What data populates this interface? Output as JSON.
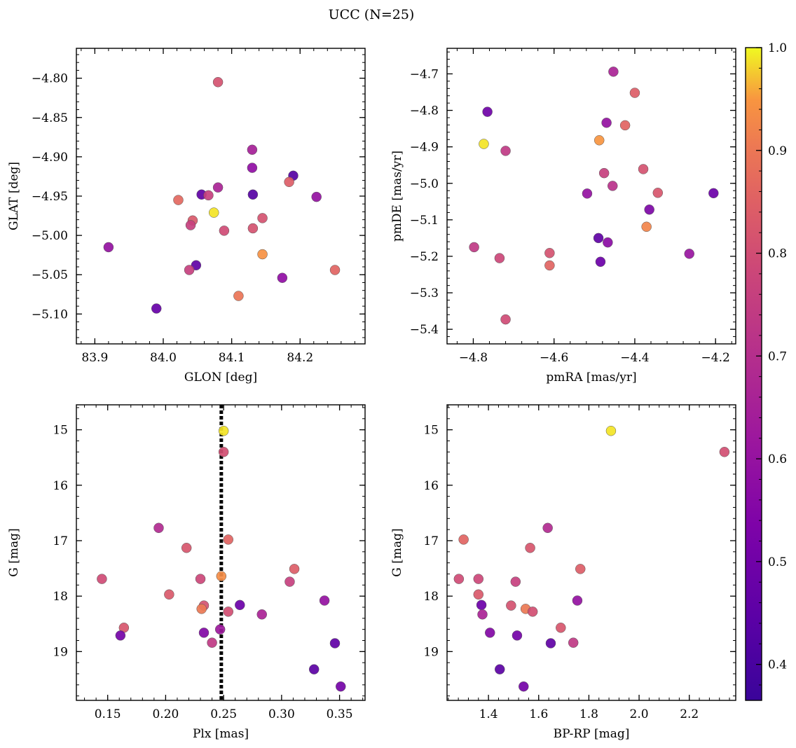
{
  "figure": {
    "suptitle": "UCC (N=25)"
  },
  "colorbar": {
    "colormap": "plasma",
    "vmin": 0.365,
    "vmax": 1.0,
    "ticks": [
      0.4,
      0.5,
      0.6,
      0.7,
      0.8,
      0.9,
      1.0
    ],
    "tick_labels": [
      "0.4",
      "0.5",
      "0.6",
      "0.7",
      "0.8",
      "0.9",
      "1.0"
    ]
  },
  "chart_data": [
    {
      "type": "scatter",
      "id": "glon-glat",
      "xlabel": "GLON [deg]",
      "ylabel": "GLAT [deg]",
      "xlim": [
        83.873,
        84.295
      ],
      "ylim": [
        -5.138,
        -4.762
      ],
      "y_inverted": false,
      "xticks": [
        83.9,
        84.0,
        84.1,
        84.2
      ],
      "xtick_labels": [
        "83.9",
        "84.0",
        "84.1",
        "84.2"
      ],
      "yticks": [
        -4.8,
        -4.85,
        -4.9,
        -4.95,
        -5.0,
        -5.05,
        -5.1
      ],
      "ytick_labels": [
        "−4.80",
        "−4.85",
        "−4.90",
        "−4.95",
        "−5.00",
        "−5.05",
        "−5.10"
      ],
      "x_minor_step": 0.02,
      "y_minor_step": 0.01,
      "points": [
        {
          "x": 84.08,
          "y": -4.805,
          "c": 0.71
        },
        {
          "x": 84.13,
          "y": -4.891,
          "c": 0.57
        },
        {
          "x": 84.13,
          "y": -4.914,
          "c": 0.52
        },
        {
          "x": 84.19,
          "y": -4.924,
          "c": 0.4
        },
        {
          "x": 84.184,
          "y": -4.932,
          "c": 0.74
        },
        {
          "x": 84.08,
          "y": -4.939,
          "c": 0.58
        },
        {
          "x": 84.056,
          "y": -4.948,
          "c": 0.42
        },
        {
          "x": 84.066,
          "y": -4.949,
          "c": 0.66
        },
        {
          "x": 84.131,
          "y": -4.948,
          "c": 0.4
        },
        {
          "x": 84.224,
          "y": -4.951,
          "c": 0.53
        },
        {
          "x": 84.022,
          "y": -4.955,
          "c": 0.77
        },
        {
          "x": 84.074,
          "y": -4.971,
          "c": 0.98
        },
        {
          "x": 84.145,
          "y": -4.978,
          "c": 0.71
        },
        {
          "x": 84.043,
          "y": -4.981,
          "c": 0.73
        },
        {
          "x": 84.04,
          "y": -4.987,
          "c": 0.66
        },
        {
          "x": 84.131,
          "y": -4.991,
          "c": 0.71
        },
        {
          "x": 84.089,
          "y": -4.994,
          "c": 0.69
        },
        {
          "x": 83.92,
          "y": -5.015,
          "c": 0.53
        },
        {
          "x": 84.145,
          "y": -5.024,
          "c": 0.87
        },
        {
          "x": 84.048,
          "y": -5.038,
          "c": 0.42
        },
        {
          "x": 84.038,
          "y": -5.044,
          "c": 0.66
        },
        {
          "x": 84.251,
          "y": -5.044,
          "c": 0.76
        },
        {
          "x": 84.174,
          "y": -5.054,
          "c": 0.52
        },
        {
          "x": 84.11,
          "y": -5.077,
          "c": 0.8
        },
        {
          "x": 83.99,
          "y": -5.093,
          "c": 0.43
        }
      ]
    },
    {
      "type": "scatter",
      "id": "pmra-pmde",
      "xlabel": "pmRA [mas/yr]",
      "ylabel": "pmDE [mas/yr]",
      "xlim": [
        -4.865,
        -4.15
      ],
      "ylim": [
        -5.44,
        -4.63
      ],
      "y_inverted": false,
      "xticks": [
        -4.8,
        -4.6,
        -4.4,
        -4.2
      ],
      "xtick_labels": [
        "−4.8",
        "−4.6",
        "−4.4",
        "−4.2"
      ],
      "yticks": [
        -4.7,
        -4.8,
        -4.9,
        -5.0,
        -5.1,
        -5.2,
        -5.3,
        -5.4
      ],
      "ytick_labels": [
        "−4.7",
        "−4.8",
        "−4.9",
        "−5.0",
        "−5.1",
        "−5.2",
        "−5.3",
        "−5.4"
      ],
      "x_minor_step": 0.04,
      "y_minor_step": 0.02,
      "points": [
        {
          "x": -4.453,
          "y": -4.694,
          "c": 0.58
        },
        {
          "x": -4.4,
          "y": -4.752,
          "c": 0.74
        },
        {
          "x": -4.765,
          "y": -4.804,
          "c": 0.45
        },
        {
          "x": -4.47,
          "y": -4.834,
          "c": 0.53
        },
        {
          "x": -4.424,
          "y": -4.841,
          "c": 0.76
        },
        {
          "x": -4.488,
          "y": -4.882,
          "c": 0.88
        },
        {
          "x": -4.774,
          "y": -4.892,
          "c": 0.98
        },
        {
          "x": -4.72,
          "y": -4.911,
          "c": 0.64
        },
        {
          "x": -4.379,
          "y": -4.961,
          "c": 0.71
        },
        {
          "x": -4.476,
          "y": -4.972,
          "c": 0.66
        },
        {
          "x": -4.455,
          "y": -5.007,
          "c": 0.62
        },
        {
          "x": -4.518,
          "y": -5.028,
          "c": 0.53
        },
        {
          "x": -4.343,
          "y": -5.026,
          "c": 0.72
        },
        {
          "x": -4.205,
          "y": -5.027,
          "c": 0.44
        },
        {
          "x": -4.364,
          "y": -5.072,
          "c": 0.48
        },
        {
          "x": -4.371,
          "y": -5.119,
          "c": 0.84
        },
        {
          "x": -4.49,
          "y": -5.15,
          "c": 0.42
        },
        {
          "x": -4.467,
          "y": -5.162,
          "c": 0.51
        },
        {
          "x": -4.798,
          "y": -5.175,
          "c": 0.64
        },
        {
          "x": -4.611,
          "y": -5.191,
          "c": 0.71
        },
        {
          "x": -4.265,
          "y": -5.193,
          "c": 0.54
        },
        {
          "x": -4.735,
          "y": -5.205,
          "c": 0.68
        },
        {
          "x": -4.485,
          "y": -5.215,
          "c": 0.44
        },
        {
          "x": -4.611,
          "y": -5.225,
          "c": 0.76
        },
        {
          "x": -4.72,
          "y": -5.373,
          "c": 0.69
        }
      ]
    },
    {
      "type": "scatter",
      "id": "plx-g",
      "xlabel": "Plx [mas]",
      "ylabel": "G [mag]",
      "xlim": [
        0.123,
        0.372
      ],
      "ylim": [
        14.55,
        19.88
      ],
      "y_inverted": true,
      "xticks": [
        0.15,
        0.2,
        0.25,
        0.3,
        0.35
      ],
      "xtick_labels": [
        "0.15",
        "0.20",
        "0.25",
        "0.30",
        "0.35"
      ],
      "yticks": [
        15,
        16,
        17,
        18,
        19
      ],
      "ytick_labels": [
        "15",
        "16",
        "17",
        "18",
        "19"
      ],
      "x_minor_step": 0.01,
      "y_minor_step": 0.2,
      "vline": 0.248,
      "points": [
        {
          "x": 0.25,
          "y": 15.02,
          "c": 0.98
        },
        {
          "x": 0.25,
          "y": 15.4,
          "c": 0.7
        },
        {
          "x": 0.194,
          "y": 16.77,
          "c": 0.6
        },
        {
          "x": 0.254,
          "y": 16.98,
          "c": 0.76
        },
        {
          "x": 0.218,
          "y": 17.13,
          "c": 0.72
        },
        {
          "x": 0.311,
          "y": 17.51,
          "c": 0.74
        },
        {
          "x": 0.248,
          "y": 17.64,
          "c": 0.86
        },
        {
          "x": 0.145,
          "y": 17.69,
          "c": 0.69
        },
        {
          "x": 0.23,
          "y": 17.69,
          "c": 0.68
        },
        {
          "x": 0.307,
          "y": 17.74,
          "c": 0.66
        },
        {
          "x": 0.203,
          "y": 17.97,
          "c": 0.73
        },
        {
          "x": 0.337,
          "y": 18.08,
          "c": 0.53
        },
        {
          "x": 0.264,
          "y": 18.16,
          "c": 0.44
        },
        {
          "x": 0.233,
          "y": 18.17,
          "c": 0.71
        },
        {
          "x": 0.231,
          "y": 18.23,
          "c": 0.81
        },
        {
          "x": 0.254,
          "y": 18.28,
          "c": 0.7
        },
        {
          "x": 0.283,
          "y": 18.33,
          "c": 0.58
        },
        {
          "x": 0.164,
          "y": 18.57,
          "c": 0.72
        },
        {
          "x": 0.247,
          "y": 18.6,
          "c": 0.55
        },
        {
          "x": 0.233,
          "y": 18.66,
          "c": 0.49
        },
        {
          "x": 0.161,
          "y": 18.71,
          "c": 0.46
        },
        {
          "x": 0.24,
          "y": 18.84,
          "c": 0.64
        },
        {
          "x": 0.346,
          "y": 18.85,
          "c": 0.42
        },
        {
          "x": 0.328,
          "y": 19.32,
          "c": 0.41
        },
        {
          "x": 0.351,
          "y": 19.63,
          "c": 0.46
        }
      ]
    },
    {
      "type": "scatter",
      "id": "bprp-g",
      "xlabel": "BP-RP [mag]",
      "ylabel": "G [mag]",
      "xlim": [
        1.235,
        2.385
      ],
      "ylim": [
        14.55,
        19.88
      ],
      "y_inverted": true,
      "xticks": [
        1.4,
        1.6,
        1.8,
        2.0,
        2.2
      ],
      "xtick_labels": [
        "1.4",
        "1.6",
        "1.8",
        "2.0",
        "2.2"
      ],
      "yticks": [
        15,
        16,
        17,
        18,
        19
      ],
      "ytick_labels": [
        "15",
        "16",
        "17",
        "18",
        "19"
      ],
      "x_minor_step": 0.04,
      "y_minor_step": 0.2,
      "points": [
        {
          "x": 1.888,
          "y": 15.02,
          "c": 0.98
        },
        {
          "x": 2.34,
          "y": 15.4,
          "c": 0.7
        },
        {
          "x": 1.636,
          "y": 16.77,
          "c": 0.6
        },
        {
          "x": 1.301,
          "y": 16.98,
          "c": 0.76
        },
        {
          "x": 1.566,
          "y": 17.13,
          "c": 0.72
        },
        {
          "x": 1.766,
          "y": 17.51,
          "c": 0.74
        },
        {
          "x": 1.282,
          "y": 17.69,
          "c": 0.69
        },
        {
          "x": 1.36,
          "y": 17.69,
          "c": 0.68
        },
        {
          "x": 1.508,
          "y": 17.74,
          "c": 0.66
        },
        {
          "x": 1.36,
          "y": 17.97,
          "c": 0.73
        },
        {
          "x": 1.754,
          "y": 18.08,
          "c": 0.53
        },
        {
          "x": 1.372,
          "y": 18.16,
          "c": 0.44
        },
        {
          "x": 1.49,
          "y": 18.17,
          "c": 0.71
        },
        {
          "x": 1.548,
          "y": 18.23,
          "c": 0.81
        },
        {
          "x": 1.576,
          "y": 18.28,
          "c": 0.7
        },
        {
          "x": 1.376,
          "y": 18.33,
          "c": 0.58
        },
        {
          "x": 1.688,
          "y": 18.57,
          "c": 0.72
        },
        {
          "x": 1.406,
          "y": 18.66,
          "c": 0.49
        },
        {
          "x": 1.514,
          "y": 18.71,
          "c": 0.46
        },
        {
          "x": 1.738,
          "y": 18.84,
          "c": 0.64
        },
        {
          "x": 1.648,
          "y": 18.85,
          "c": 0.42
        },
        {
          "x": 1.445,
          "y": 19.32,
          "c": 0.41
        },
        {
          "x": 1.54,
          "y": 19.63,
          "c": 0.46
        }
      ]
    }
  ]
}
